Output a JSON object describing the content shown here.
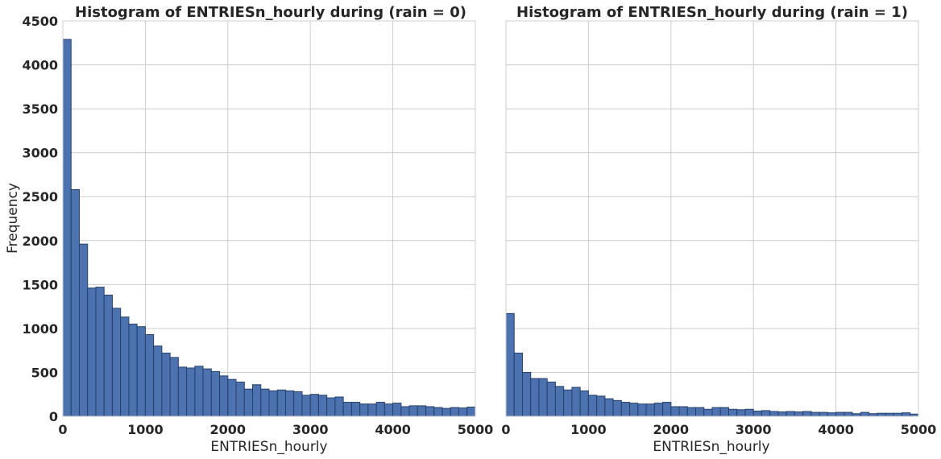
{
  "colors": {
    "bar": "#4c72b0",
    "bar_edge": "#27406b",
    "grid": "#cccccc",
    "text": "#262626"
  },
  "chart_data": [
    {
      "type": "bar",
      "title": "Histogram of ENTRIESn_hourly during (rain = 0)",
      "xlabel": "ENTRIESn_hourly",
      "ylabel": "Frequency",
      "xlim": [
        0,
        5000
      ],
      "ylim": [
        0,
        4500
      ],
      "grid": true,
      "bin_width": 100,
      "xticks": [
        "0",
        "1000",
        "2000",
        "3000",
        "4000",
        "5000"
      ],
      "yticks": [
        "0",
        "500",
        "1000",
        "1500",
        "2000",
        "2500",
        "3000",
        "3500",
        "4000",
        "4500"
      ],
      "bin_starts": [
        0,
        100,
        200,
        300,
        400,
        500,
        600,
        700,
        800,
        900,
        1000,
        1100,
        1200,
        1300,
        1400,
        1500,
        1600,
        1700,
        1800,
        1900,
        2000,
        2100,
        2200,
        2300,
        2400,
        2500,
        2600,
        2700,
        2800,
        2900,
        3000,
        3100,
        3200,
        3300,
        3400,
        3500,
        3600,
        3700,
        3800,
        3900,
        4000,
        4100,
        4200,
        4300,
        4400,
        4500,
        4600,
        4700,
        4800,
        4900
      ],
      "values": [
        4290,
        2580,
        1960,
        1460,
        1470,
        1380,
        1230,
        1130,
        1050,
        1020,
        930,
        800,
        720,
        670,
        560,
        550,
        570,
        540,
        510,
        460,
        420,
        390,
        310,
        360,
        310,
        290,
        300,
        290,
        280,
        240,
        250,
        240,
        210,
        220,
        160,
        160,
        140,
        140,
        160,
        140,
        150,
        110,
        120,
        120,
        110,
        100,
        90,
        100,
        95,
        105
      ]
    },
    {
      "type": "bar",
      "title": "Histogram of ENTRIESn_hourly during (rain = 1)",
      "xlabel": "ENTRIESn_hourly",
      "ylabel": "",
      "xlim": [
        0,
        5000
      ],
      "ylim": [
        0,
        4500
      ],
      "grid": true,
      "bin_width": 100,
      "xticks": [
        "0",
        "1000",
        "2000",
        "3000",
        "4000",
        "5000"
      ],
      "yticks": [],
      "bin_starts": [
        0,
        100,
        200,
        300,
        400,
        500,
        600,
        700,
        800,
        900,
        1000,
        1100,
        1200,
        1300,
        1400,
        1500,
        1600,
        1700,
        1800,
        1900,
        2000,
        2100,
        2200,
        2300,
        2400,
        2500,
        2600,
        2700,
        2800,
        2900,
        3000,
        3100,
        3200,
        3300,
        3400,
        3500,
        3600,
        3700,
        3800,
        3900,
        4000,
        4100,
        4200,
        4300,
        4400,
        4500,
        4600,
        4700,
        4800,
        4900
      ],
      "values": [
        1170,
        720,
        500,
        430,
        430,
        390,
        340,
        300,
        330,
        290,
        240,
        230,
        200,
        180,
        160,
        150,
        140,
        140,
        150,
        160,
        110,
        110,
        100,
        100,
        80,
        100,
        100,
        80,
        75,
        80,
        60,
        65,
        55,
        50,
        55,
        50,
        55,
        45,
        45,
        40,
        45,
        45,
        30,
        45,
        30,
        35,
        35,
        35,
        40,
        25
      ]
    }
  ]
}
